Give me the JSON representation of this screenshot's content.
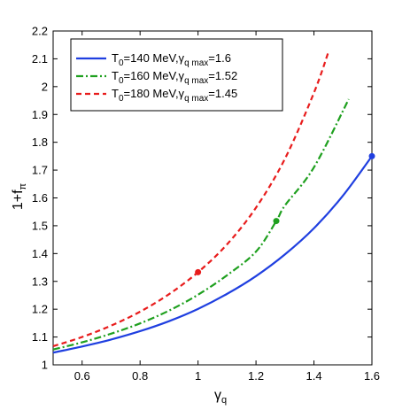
{
  "chart_data": {
    "type": "line",
    "xlabel": "γ",
    "xlabel_sub": "q",
    "ylabel": "1+f",
    "ylabel_sub": "π",
    "xlim": [
      0.5,
      1.6
    ],
    "ylim": [
      1.0,
      2.2
    ],
    "x_ticks": [
      0.6,
      0.8,
      1.0,
      1.2,
      1.4,
      1.6
    ],
    "x_tick_labels": [
      "0.6",
      "0.8",
      "1",
      "1.2",
      "1.4",
      "1.6"
    ],
    "y_ticks": [
      1.0,
      1.1,
      1.2,
      1.3,
      1.4,
      1.5,
      1.6,
      1.7,
      1.8,
      1.9,
      2.0,
      2.1,
      2.2
    ],
    "y_tick_labels": [
      "1",
      "1.1",
      "1.2",
      "1.3",
      "1.4",
      "1.5",
      "1.6",
      "1.7",
      "1.8",
      "1.9",
      "2",
      "2.1",
      "2.2"
    ],
    "grid": false,
    "legend_position": "top-left",
    "series": [
      {
        "legend": {
          "a": "T",
          "b": "0",
          "c": "=140 MeV,γ",
          "d": "q max",
          "e": "=1.6"
        },
        "color": "#1f3fe0",
        "style": "solid",
        "x": [
          0.5,
          0.6,
          0.7,
          0.8,
          0.9,
          1.0,
          1.1,
          1.2,
          1.3,
          1.4,
          1.5,
          1.6
        ],
        "y": [
          1.044,
          1.066,
          1.091,
          1.121,
          1.157,
          1.201,
          1.255,
          1.319,
          1.397,
          1.491,
          1.608,
          1.75
        ],
        "marker": {
          "x": 1.6,
          "y": 1.75
        }
      },
      {
        "legend": {
          "a": "T",
          "b": "0",
          "c": "=160 MeV,γ",
          "d": "q max",
          "e": "=1.52"
        },
        "color": "#1fa01f",
        "style": "dashdot",
        "x": [
          0.5,
          0.6,
          0.7,
          0.8,
          0.9,
          1.0,
          1.1,
          1.2,
          1.27,
          1.3,
          1.4,
          1.52
        ],
        "y": [
          1.055,
          1.081,
          1.112,
          1.149,
          1.195,
          1.252,
          1.322,
          1.407,
          1.517,
          1.573,
          1.71,
          1.955
        ],
        "marker": {
          "x": 1.27,
          "y": 1.517
        }
      },
      {
        "legend": {
          "a": "T",
          "b": "0",
          "c": "=180 MeV,γ",
          "d": "q max",
          "e": "=1.45"
        },
        "color": "#e81c1c",
        "style": "dashed",
        "x": [
          0.5,
          0.6,
          0.7,
          0.8,
          0.9,
          1.0,
          1.1,
          1.2,
          1.3,
          1.4,
          1.45
        ],
        "y": [
          1.067,
          1.1,
          1.141,
          1.191,
          1.254,
          1.333,
          1.433,
          1.565,
          1.741,
          1.978,
          2.125
        ],
        "marker": {
          "x": 1.0,
          "y": 1.333
        }
      }
    ]
  }
}
